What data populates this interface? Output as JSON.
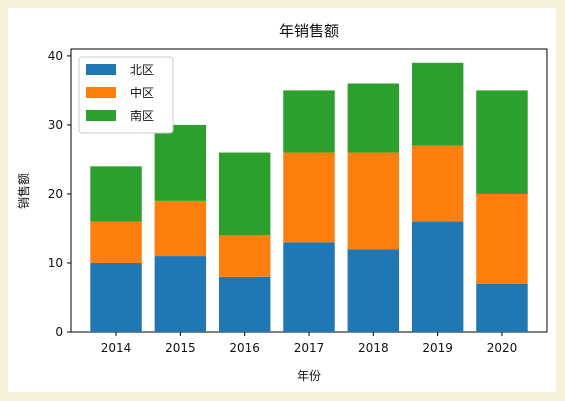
{
  "chart_data": {
    "type": "bar",
    "stacked": true,
    "title": "年销售额",
    "xlabel": "年份",
    "ylabel": "销售额",
    "categories": [
      "2014",
      "2015",
      "2016",
      "2017",
      "2018",
      "2019",
      "2020"
    ],
    "ylim": [
      0,
      41
    ],
    "yticks": [
      "0",
      "10",
      "20",
      "30",
      "40"
    ],
    "legend_position": "top-left",
    "grid": false,
    "series": [
      {
        "name": "北区",
        "values": [
          10,
          11,
          8,
          13,
          12,
          16,
          7
        ],
        "color": "#1f77b4"
      },
      {
        "name": "中区",
        "values": [
          6,
          8,
          6,
          13,
          14,
          11,
          13
        ],
        "color": "#ff7f0e"
      },
      {
        "name": "南区",
        "values": [
          8,
          11,
          12,
          9,
          10,
          12,
          15
        ],
        "color": "#2ca02c"
      }
    ]
  }
}
